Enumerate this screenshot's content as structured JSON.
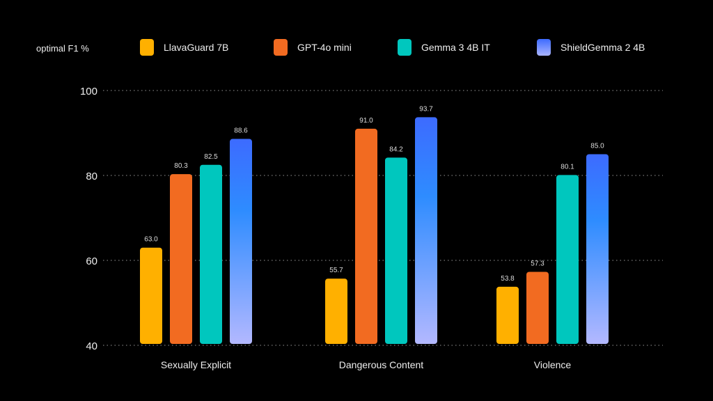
{
  "chart_data": {
    "type": "bar",
    "ylabel": "optimal F1 %",
    "ylim": [
      40,
      100
    ],
    "yticks": [
      40,
      60,
      80,
      100
    ],
    "grid": true,
    "legend": "top",
    "categories": [
      "Sexually Explicit",
      "Dangerous Content",
      "Violence"
    ],
    "series": [
      {
        "name": "LlavaGuard 7B",
        "values": [
          63.0,
          55.7,
          53.8
        ],
        "color": "#FFB000"
      },
      {
        "name": "GPT-4o mini",
        "values": [
          80.3,
          91.0,
          57.3
        ],
        "color": "#F26B21"
      },
      {
        "name": "Gemma 3 4B IT",
        "values": [
          82.5,
          84.2,
          80.1
        ],
        "color": "#00C7BE"
      },
      {
        "name": "ShieldGemma 2 4B",
        "values": [
          88.6,
          93.7,
          85.0
        ],
        "color": "#3D6BFF",
        "gradient_to": "#A9B4FF"
      }
    ]
  }
}
